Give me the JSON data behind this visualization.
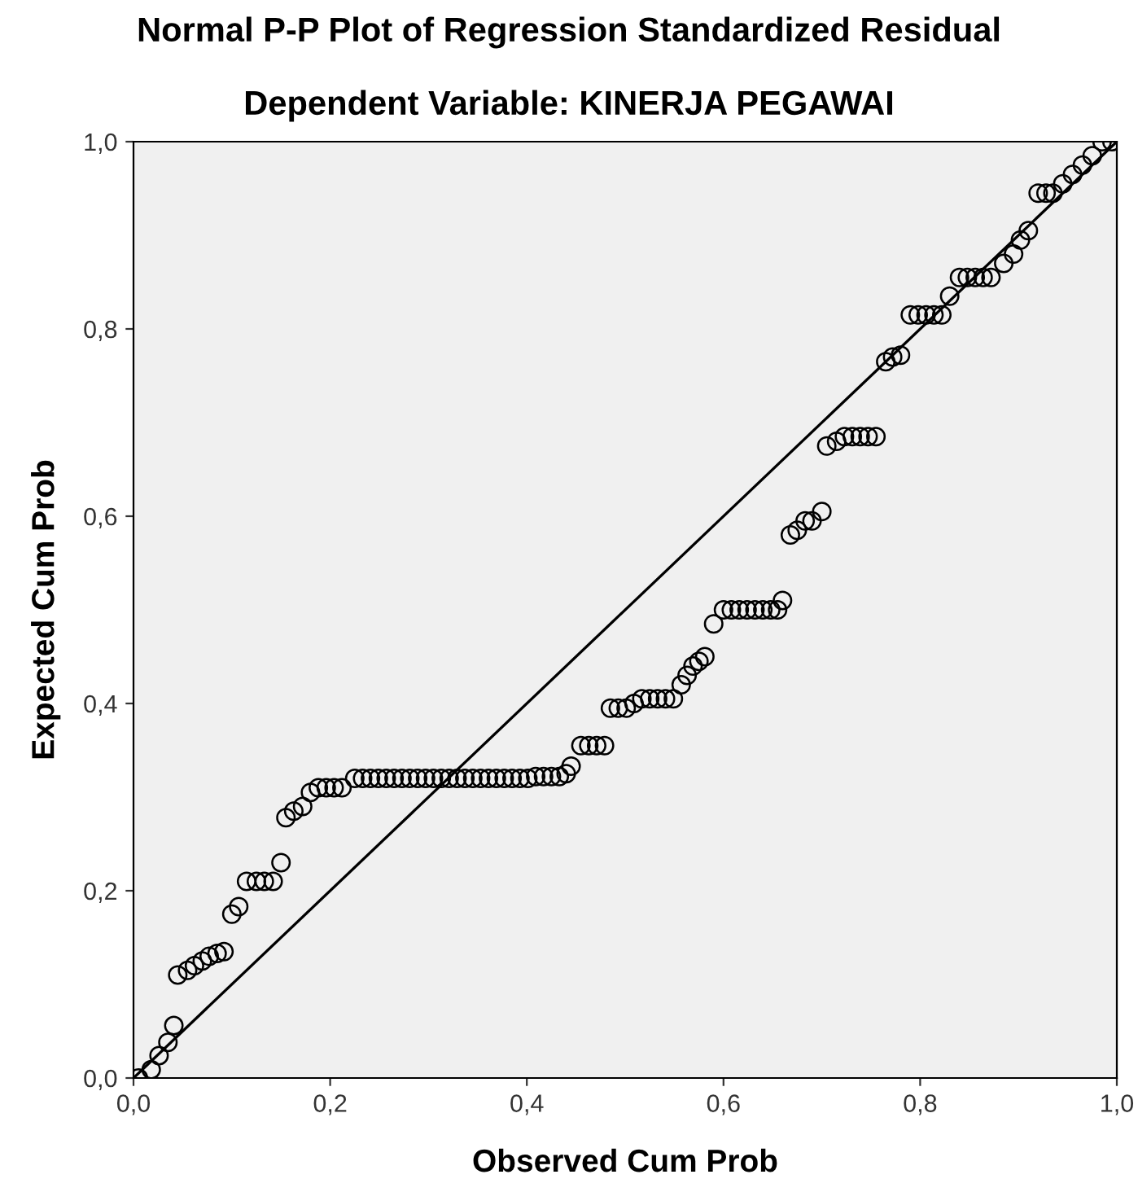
{
  "chart_data": {
    "type": "scatter",
    "title": "Normal P-P Plot of Regression Standardized Residual",
    "subtitle": "Dependent Variable: KINERJA PEGAWAI",
    "xlabel": "Observed Cum Prob",
    "ylabel": "Expected Cum Prob",
    "xlim": [
      0,
      1
    ],
    "ylim": [
      0,
      1
    ],
    "xticks": [
      {
        "value": 0,
        "label": "0,0"
      },
      {
        "value": 0.2,
        "label": "0,2"
      },
      {
        "value": 0.4,
        "label": "0,4"
      },
      {
        "value": 0.6,
        "label": "0,6"
      },
      {
        "value": 0.8,
        "label": "0,8"
      },
      {
        "value": 1,
        "label": "1,0"
      }
    ],
    "yticks": [
      {
        "value": 0,
        "label": "0,0"
      },
      {
        "value": 0.2,
        "label": "0,2"
      },
      {
        "value": 0.4,
        "label": "0,4"
      },
      {
        "value": 0.6,
        "label": "0,6"
      },
      {
        "value": 0.8,
        "label": "0,8"
      },
      {
        "value": 1,
        "label": "1,0"
      }
    ],
    "grid": false,
    "series": [
      {
        "color": "#000000",
        "marker": "circle",
        "x": [
          0.005,
          0.018,
          0.026,
          0.035,
          0.041,
          0.045,
          0.055,
          0.062,
          0.07,
          0.077,
          0.085,
          0.092,
          0.1,
          0.107,
          0.115,
          0.125,
          0.133,
          0.142,
          0.15,
          0.155,
          0.163,
          0.172,
          0.18,
          0.188,
          0.196,
          0.204,
          0.212,
          0.225,
          0.233,
          0.241,
          0.249,
          0.257,
          0.265,
          0.273,
          0.281,
          0.289,
          0.297,
          0.305,
          0.313,
          0.321,
          0.329,
          0.337,
          0.345,
          0.353,
          0.361,
          0.369,
          0.377,
          0.385,
          0.393,
          0.401,
          0.409,
          0.417,
          0.425,
          0.433,
          0.44,
          0.445,
          0.455,
          0.463,
          0.471,
          0.479,
          0.485,
          0.493,
          0.501,
          0.509,
          0.517,
          0.525,
          0.533,
          0.541,
          0.549,
          0.557,
          0.563,
          0.569,
          0.575,
          0.581,
          0.59,
          0.6,
          0.608,
          0.616,
          0.624,
          0.632,
          0.64,
          0.648,
          0.655,
          0.66,
          0.668,
          0.675,
          0.683,
          0.69,
          0.7,
          0.705,
          0.715,
          0.723,
          0.731,
          0.739,
          0.747,
          0.755,
          0.765,
          0.772,
          0.78,
          0.79,
          0.798,
          0.806,
          0.814,
          0.822,
          0.83,
          0.84,
          0.848,
          0.856,
          0.864,
          0.872,
          0.885,
          0.895,
          0.902,
          0.91,
          0.92,
          0.928,
          0.935,
          0.945,
          0.955,
          0.965,
          0.975,
          0.985,
          0.995
        ],
        "values": [
          0.0,
          0.009,
          0.024,
          0.038,
          0.056,
          0.11,
          0.115,
          0.12,
          0.125,
          0.13,
          0.133,
          0.135,
          0.175,
          0.183,
          0.21,
          0.21,
          0.21,
          0.21,
          0.23,
          0.278,
          0.285,
          0.29,
          0.305,
          0.31,
          0.31,
          0.31,
          0.31,
          0.32,
          0.32,
          0.32,
          0.32,
          0.32,
          0.32,
          0.32,
          0.32,
          0.32,
          0.32,
          0.32,
          0.32,
          0.32,
          0.32,
          0.32,
          0.32,
          0.32,
          0.32,
          0.32,
          0.32,
          0.32,
          0.32,
          0.32,
          0.322,
          0.322,
          0.322,
          0.322,
          0.325,
          0.333,
          0.355,
          0.355,
          0.355,
          0.355,
          0.395,
          0.395,
          0.395,
          0.4,
          0.405,
          0.405,
          0.405,
          0.405,
          0.405,
          0.42,
          0.43,
          0.44,
          0.445,
          0.45,
          0.485,
          0.5,
          0.5,
          0.5,
          0.5,
          0.5,
          0.5,
          0.5,
          0.5,
          0.51,
          0.58,
          0.585,
          0.595,
          0.595,
          0.605,
          0.675,
          0.68,
          0.685,
          0.685,
          0.685,
          0.685,
          0.685,
          0.765,
          0.77,
          0.772,
          0.815,
          0.815,
          0.815,
          0.815,
          0.815,
          0.835,
          0.855,
          0.855,
          0.855,
          0.855,
          0.855,
          0.87,
          0.88,
          0.895,
          0.905,
          0.945,
          0.945,
          0.945,
          0.955,
          0.965,
          0.975,
          0.985,
          1.0,
          1.0
        ]
      },
      {
        "type": "line",
        "marker": "none",
        "color": "#000000",
        "x": [
          0,
          1
        ],
        "values": [
          0,
          1
        ]
      }
    ]
  }
}
